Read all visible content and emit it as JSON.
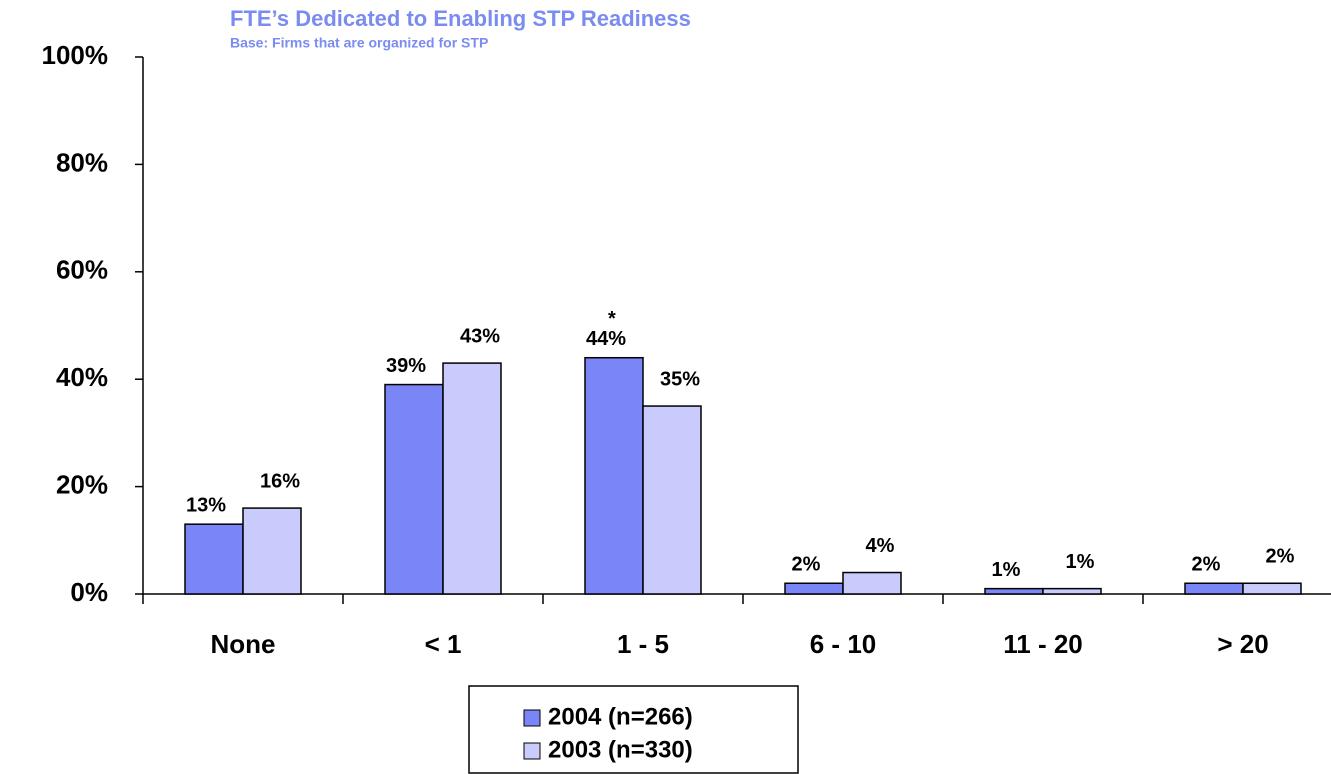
{
  "chart_data": {
    "type": "bar",
    "title": "FTE’s Dedicated to Enabling STP Readiness",
    "subtitle": "Base: Firms that are organized for STP",
    "categories": [
      "None",
      "< 1",
      "1 - 5",
      "6 - 10",
      "11 - 20",
      "> 20"
    ],
    "series": [
      {
        "name": "2004 (n=266)",
        "color": "#7b86f6",
        "values": [
          13,
          39,
          44,
          2,
          1,
          2
        ],
        "value_labels": [
          "13%",
          "39%",
          "44%",
          "2%",
          "1%",
          "2%"
        ]
      },
      {
        "name": "2003 (n=330)",
        "color": "#c8cbfb",
        "values": [
          16,
          43,
          35,
          4,
          1,
          2
        ],
        "value_labels": [
          "16%",
          "43%",
          "35%",
          "4%",
          "1%",
          "2%"
        ]
      }
    ],
    "annotations": [
      "*"
    ],
    "ylim": [
      0,
      100
    ],
    "yticks": [
      {
        "value": 0,
        "label": "0%"
      },
      {
        "value": 20,
        "label": "20%"
      },
      {
        "value": 40,
        "label": "40%"
      },
      {
        "value": 60,
        "label": "60%"
      },
      {
        "value": 80,
        "label": "80%"
      },
      {
        "value": 100,
        "label": "100%"
      }
    ],
    "grid": false
  }
}
